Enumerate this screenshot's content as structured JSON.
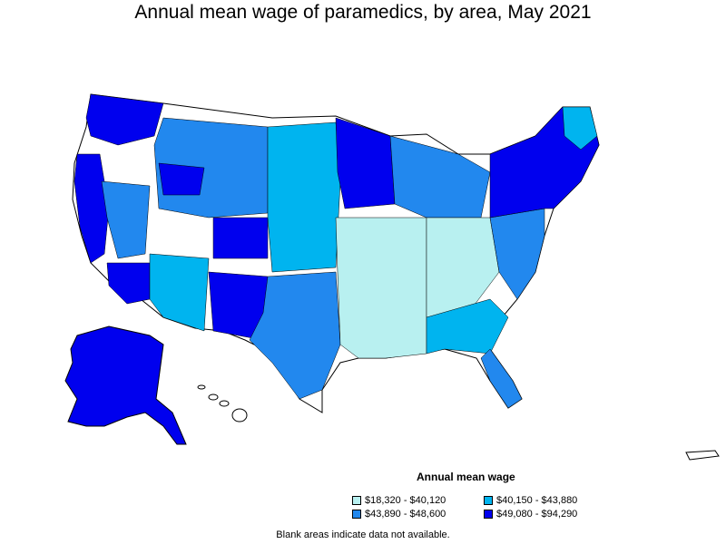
{
  "title": "Annual mean wage of paramedics, by area, May 2021",
  "legend": {
    "title": "Annual mean wage",
    "items": [
      {
        "label": "$18,320 - $40,120",
        "color": "#b8f0f0"
      },
      {
        "label": "$40,150 - $43,880",
        "color": "#00b4ef"
      },
      {
        "label": "$43,890 - $48,600",
        "color": "#2288ee"
      },
      {
        "label": "$49,080 - $94,290",
        "color": "#0000ee"
      }
    ]
  },
  "note": "Blank areas indicate data not available.",
  "colors": {
    "outline": "#000000",
    "blank": "#ffffff"
  }
}
